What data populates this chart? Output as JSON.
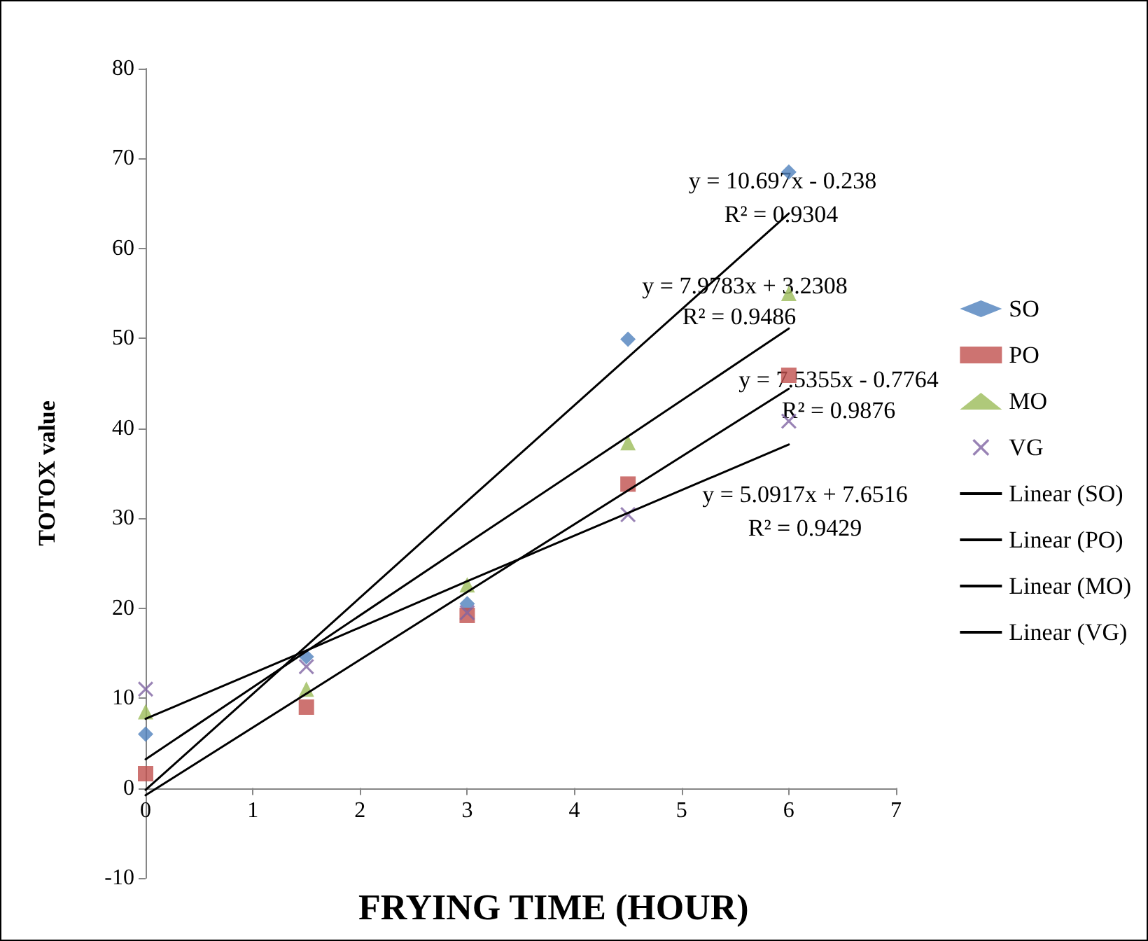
{
  "chart_data": {
    "type": "scatter",
    "xlabel": "FRYING TIME (HOUR)",
    "ylabel": "TOTOX value",
    "x": [
      0,
      1.5,
      3,
      4.5,
      6
    ],
    "series": [
      {
        "name": "SO",
        "color": "#4f81bd",
        "marker": "diamond",
        "values": [
          6.0,
          14.6,
          20.5,
          49.9,
          68.5
        ]
      },
      {
        "name": "PO",
        "color": "#c0504d",
        "marker": "square",
        "values": [
          1.6,
          9.0,
          19.2,
          33.8,
          45.9
        ]
      },
      {
        "name": "MO",
        "color": "#9bbb59",
        "marker": "triangle",
        "values": [
          8.5,
          11.0,
          22.6,
          38.4,
          55.0
        ]
      },
      {
        "name": "VG",
        "color": "#8064a2",
        "marker": "cross",
        "values": [
          11.0,
          13.5,
          19.5,
          30.4,
          40.8
        ]
      },
      {
        "name": "Linear (SO)",
        "type": "line",
        "color": "#000000",
        "marker": "none",
        "line_style": "solid",
        "values": [
          -0.2,
          15.8,
          31.9,
          47.9,
          63.9
        ]
      },
      {
        "name": "Linear (PO)",
        "type": "line",
        "color": "#000000",
        "marker": "none",
        "line_style": "solid",
        "values": [
          -0.8,
          10.5,
          21.8,
          33.1,
          44.4
        ]
      },
      {
        "name": "Linear (MO)",
        "type": "line",
        "color": "#000000",
        "marker": "none",
        "line_style": "solid",
        "values": [
          3.2,
          15.2,
          27.2,
          39.1,
          51.1
        ]
      },
      {
        "name": "Linear (VG)",
        "type": "line",
        "color": "#000000",
        "marker": "none",
        "line_style": "solid",
        "values": [
          7.7,
          15.3,
          23.0,
          30.6,
          38.2
        ]
      }
    ],
    "xlim": [
      0,
      7
    ],
    "xticks": [
      0,
      1,
      2,
      3,
      4,
      5,
      6,
      7
    ],
    "ylim": [
      -10,
      80
    ],
    "yticks": [
      -10,
      0,
      10,
      20,
      30,
      40,
      50,
      60,
      70,
      80
    ],
    "legend": "right",
    "annotations": [
      "y = 10.697x - 0.238",
      "R² = 0.9304",
      "y = 7.9783x + 3.2308",
      "R² = 0.9486",
      "y = 7.5355x - 0.7764",
      "R² = 0.9876",
      "y = 5.0917x + 7.6516",
      "R² = 0.9429"
    ]
  }
}
